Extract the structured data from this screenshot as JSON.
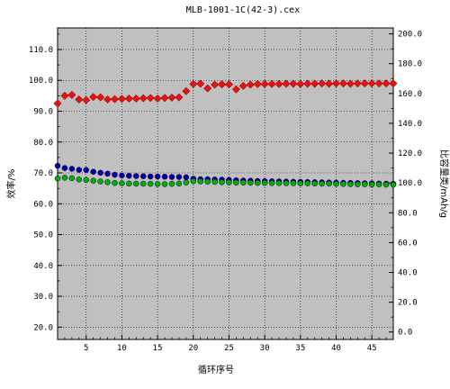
{
  "chart_data": {
    "type": "scatter",
    "title": "MLB-1001-1C(42-3).cex",
    "xlabel": "循环序号",
    "ylabel_left": "效率/%",
    "ylabel_right": "比容量类/mAh/g",
    "xlim": [
      1,
      48
    ],
    "ylim_left": [
      16,
      117
    ],
    "ylim_right": [
      -5,
      204
    ],
    "x_ticks": [
      5,
      10,
      15,
      20,
      25,
      30,
      35,
      40,
      45
    ],
    "y_ticks_left": [
      20,
      30,
      40,
      50,
      60,
      70,
      80,
      90,
      100,
      110
    ],
    "y_ticks_right": [
      0,
      20,
      40,
      60,
      80,
      100,
      120,
      140,
      160,
      180,
      200
    ],
    "grid": true,
    "colors": {
      "plot_bg": "#c0c0c0",
      "efficiency": "#e81010",
      "charge": "#0000a0",
      "discharge": "#00b000"
    },
    "series": [
      {
        "key": "efficiency",
        "axis": "left",
        "marker": "diamond",
        "color": "#e81010",
        "x": [
          1,
          2,
          3,
          4,
          5,
          6,
          7,
          8,
          9,
          10,
          11,
          12,
          13,
          14,
          15,
          16,
          17,
          18,
          19,
          20,
          21,
          22,
          23,
          24,
          25,
          26,
          27,
          28,
          29,
          30,
          31,
          32,
          33,
          34,
          35,
          36,
          37,
          38,
          39,
          40,
          41,
          42,
          43,
          44,
          45,
          46,
          47,
          48
        ],
        "y": [
          92.5,
          95.0,
          95.3,
          93.8,
          93.6,
          94.6,
          94.5,
          93.8,
          93.9,
          94.0,
          94.1,
          94.1,
          94.2,
          94.3,
          94.1,
          94.3,
          94.4,
          94.5,
          96.5,
          98.8,
          98.9,
          97.4,
          98.6,
          98.7,
          98.7,
          97.1,
          98.2,
          98.6,
          98.8,
          98.8,
          98.8,
          98.8,
          98.9,
          98.9,
          98.8,
          98.9,
          98.9,
          99.0,
          98.9,
          99.0,
          99.0,
          98.9,
          99.0,
          99.0,
          99.0,
          99.0,
          99.0,
          99.0
        ]
      },
      {
        "key": "charge",
        "axis": "right",
        "marker": "circle",
        "color": "#0000a0",
        "x": [
          1,
          2,
          3,
          4,
          5,
          6,
          7,
          8,
          9,
          10,
          11,
          12,
          13,
          14,
          15,
          16,
          17,
          18,
          19,
          20,
          21,
          22,
          23,
          24,
          25,
          26,
          27,
          28,
          29,
          30,
          31,
          32,
          33,
          34,
          35,
          36,
          37,
          38,
          39,
          40,
          41,
          42,
          43,
          44,
          45,
          46,
          47,
          48
        ],
        "y": [
          111.5,
          110.0,
          109.5,
          108.8,
          108.7,
          107.5,
          106.8,
          106.2,
          105.5,
          105.0,
          104.8,
          104.6,
          104.5,
          104.3,
          104.3,
          104.2,
          104.0,
          104.0,
          103.8,
          102.8,
          102.5,
          102.5,
          102.3,
          102.2,
          102.0,
          101.8,
          101.6,
          101.5,
          101.3,
          101.2,
          101.1,
          101.0,
          100.9,
          100.8,
          100.7,
          100.6,
          100.5,
          100.4,
          100.3,
          100.2,
          100.1,
          100.0,
          99.9,
          99.8,
          99.7,
          99.6,
          99.5,
          99.4
        ]
      },
      {
        "key": "discharge",
        "axis": "right",
        "marker": "circle",
        "color": "#00b000",
        "x": [
          1,
          2,
          3,
          4,
          5,
          6,
          7,
          8,
          9,
          10,
          11,
          12,
          13,
          14,
          15,
          16,
          17,
          18,
          19,
          20,
          21,
          22,
          23,
          24,
          25,
          26,
          27,
          28,
          29,
          30,
          31,
          32,
          33,
          34,
          35,
          36,
          37,
          38,
          39,
          40,
          41,
          42,
          43,
          44,
          45,
          46,
          47,
          48
        ],
        "y": [
          103.0,
          103.5,
          103.2,
          102.3,
          102.0,
          101.5,
          101.0,
          100.5,
          100.0,
          99.8,
          99.6,
          99.5,
          99.5,
          99.4,
          99.3,
          99.2,
          99.4,
          99.6,
          100.3,
          101.2,
          101.0,
          100.8,
          100.7,
          100.5,
          100.3,
          100.2,
          100.2,
          100.1,
          100.0,
          100.0,
          99.9,
          99.9,
          99.8,
          99.8,
          99.7,
          99.7,
          99.6,
          99.5,
          99.5,
          99.4,
          99.3,
          99.2,
          99.1,
          99.1,
          99.0,
          99.0,
          98.9,
          98.8
        ]
      }
    ]
  }
}
